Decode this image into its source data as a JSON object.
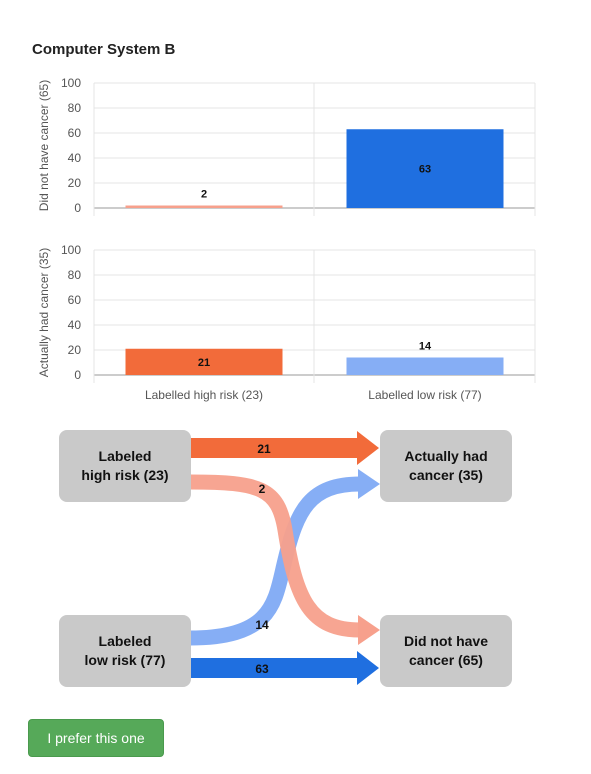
{
  "title": "Computer System B",
  "colors": {
    "high_risk_had_cancer": "#f26b3a",
    "high_risk_no_cancer": "#f7a08c",
    "low_risk_had_cancer": "#86aef5",
    "low_risk_no_cancer": "#1f6fe0",
    "node_bg": "#c9c9c9",
    "button_bg": "#56a959"
  },
  "chart_data": [
    {
      "type": "bar",
      "categories": [
        "Labelled high risk (23)",
        "Labelled low risk (77)"
      ],
      "values": [
        2,
        63
      ],
      "colors": [
        "#f7a08c",
        "#1f6fe0"
      ],
      "ylabel": "Did not have cancer (65)",
      "ylim": [
        0,
        100
      ],
      "yticks": [
        0,
        20,
        40,
        60,
        80,
        100
      ],
      "data_labels": [
        "2",
        "63"
      ],
      "grid": true
    },
    {
      "type": "bar",
      "categories": [
        "Labelled high risk (23)",
        "Labelled low risk (77)"
      ],
      "values": [
        21,
        14
      ],
      "colors": [
        "#f26b3a",
        "#86aef5"
      ],
      "ylabel": "Actually had cancer (35)",
      "ylim": [
        0,
        100
      ],
      "yticks": [
        0,
        20,
        40,
        60,
        80,
        100
      ],
      "data_labels": [
        "21",
        "14"
      ],
      "grid": true
    }
  ],
  "flow": {
    "nodes": {
      "high_risk": "Labeled\nhigh risk (23)",
      "low_risk": "Labeled\nlow risk (77)",
      "had_cancer": "Actually had\ncancer (35)",
      "no_cancer": "Did not have\ncancer (65)"
    },
    "links": [
      {
        "from": "high_risk",
        "to": "had_cancer",
        "value": 21,
        "color": "#f26b3a"
      },
      {
        "from": "high_risk",
        "to": "no_cancer",
        "value": 2,
        "color": "#f7a08c"
      },
      {
        "from": "low_risk",
        "to": "had_cancer",
        "value": 14,
        "color": "#86aef5"
      },
      {
        "from": "low_risk",
        "to": "no_cancer",
        "value": 63,
        "color": "#1f6fe0"
      }
    ]
  },
  "button": {
    "label": "I prefer this one"
  }
}
